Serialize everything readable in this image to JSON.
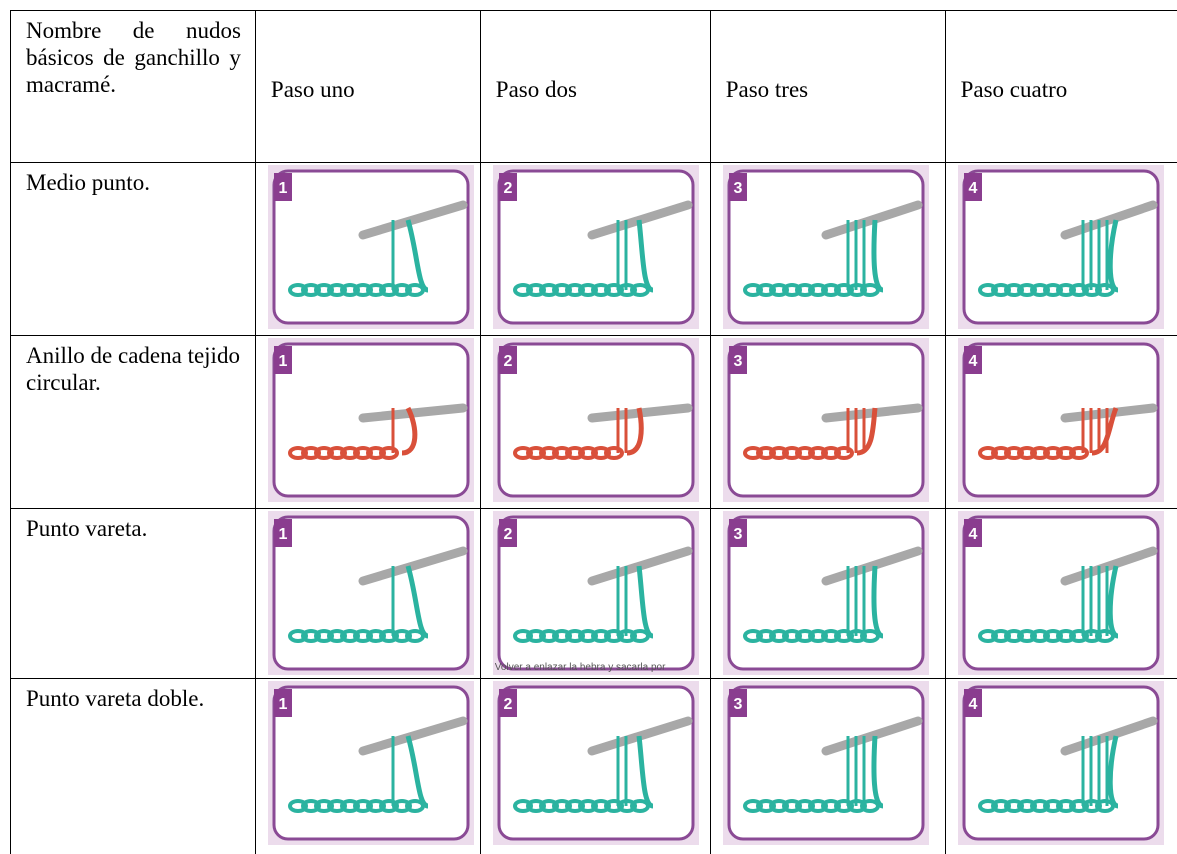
{
  "table": {
    "header": [
      "Nombre de nudos básicos de ganchillo y macramé.",
      "Paso uno",
      "Paso dos",
      "Paso tres",
      "Paso cuatro"
    ],
    "rows": [
      {
        "name": "Medio punto.",
        "steps": [
          "1",
          "2",
          "3",
          "4"
        ]
      },
      {
        "name": "Anillo de cadena tejido circular.",
        "steps": [
          "1",
          "2",
          "3",
          "4"
        ]
      },
      {
        "name": "Punto vareta.",
        "steps": [
          "1",
          "2",
          "3",
          "4"
        ],
        "caption": "Volver a enlazar la hebra y sacarla por"
      },
      {
        "name": "Punto vareta doble.",
        "steps": [
          "1",
          "2",
          "3",
          "4"
        ]
      }
    ]
  }
}
